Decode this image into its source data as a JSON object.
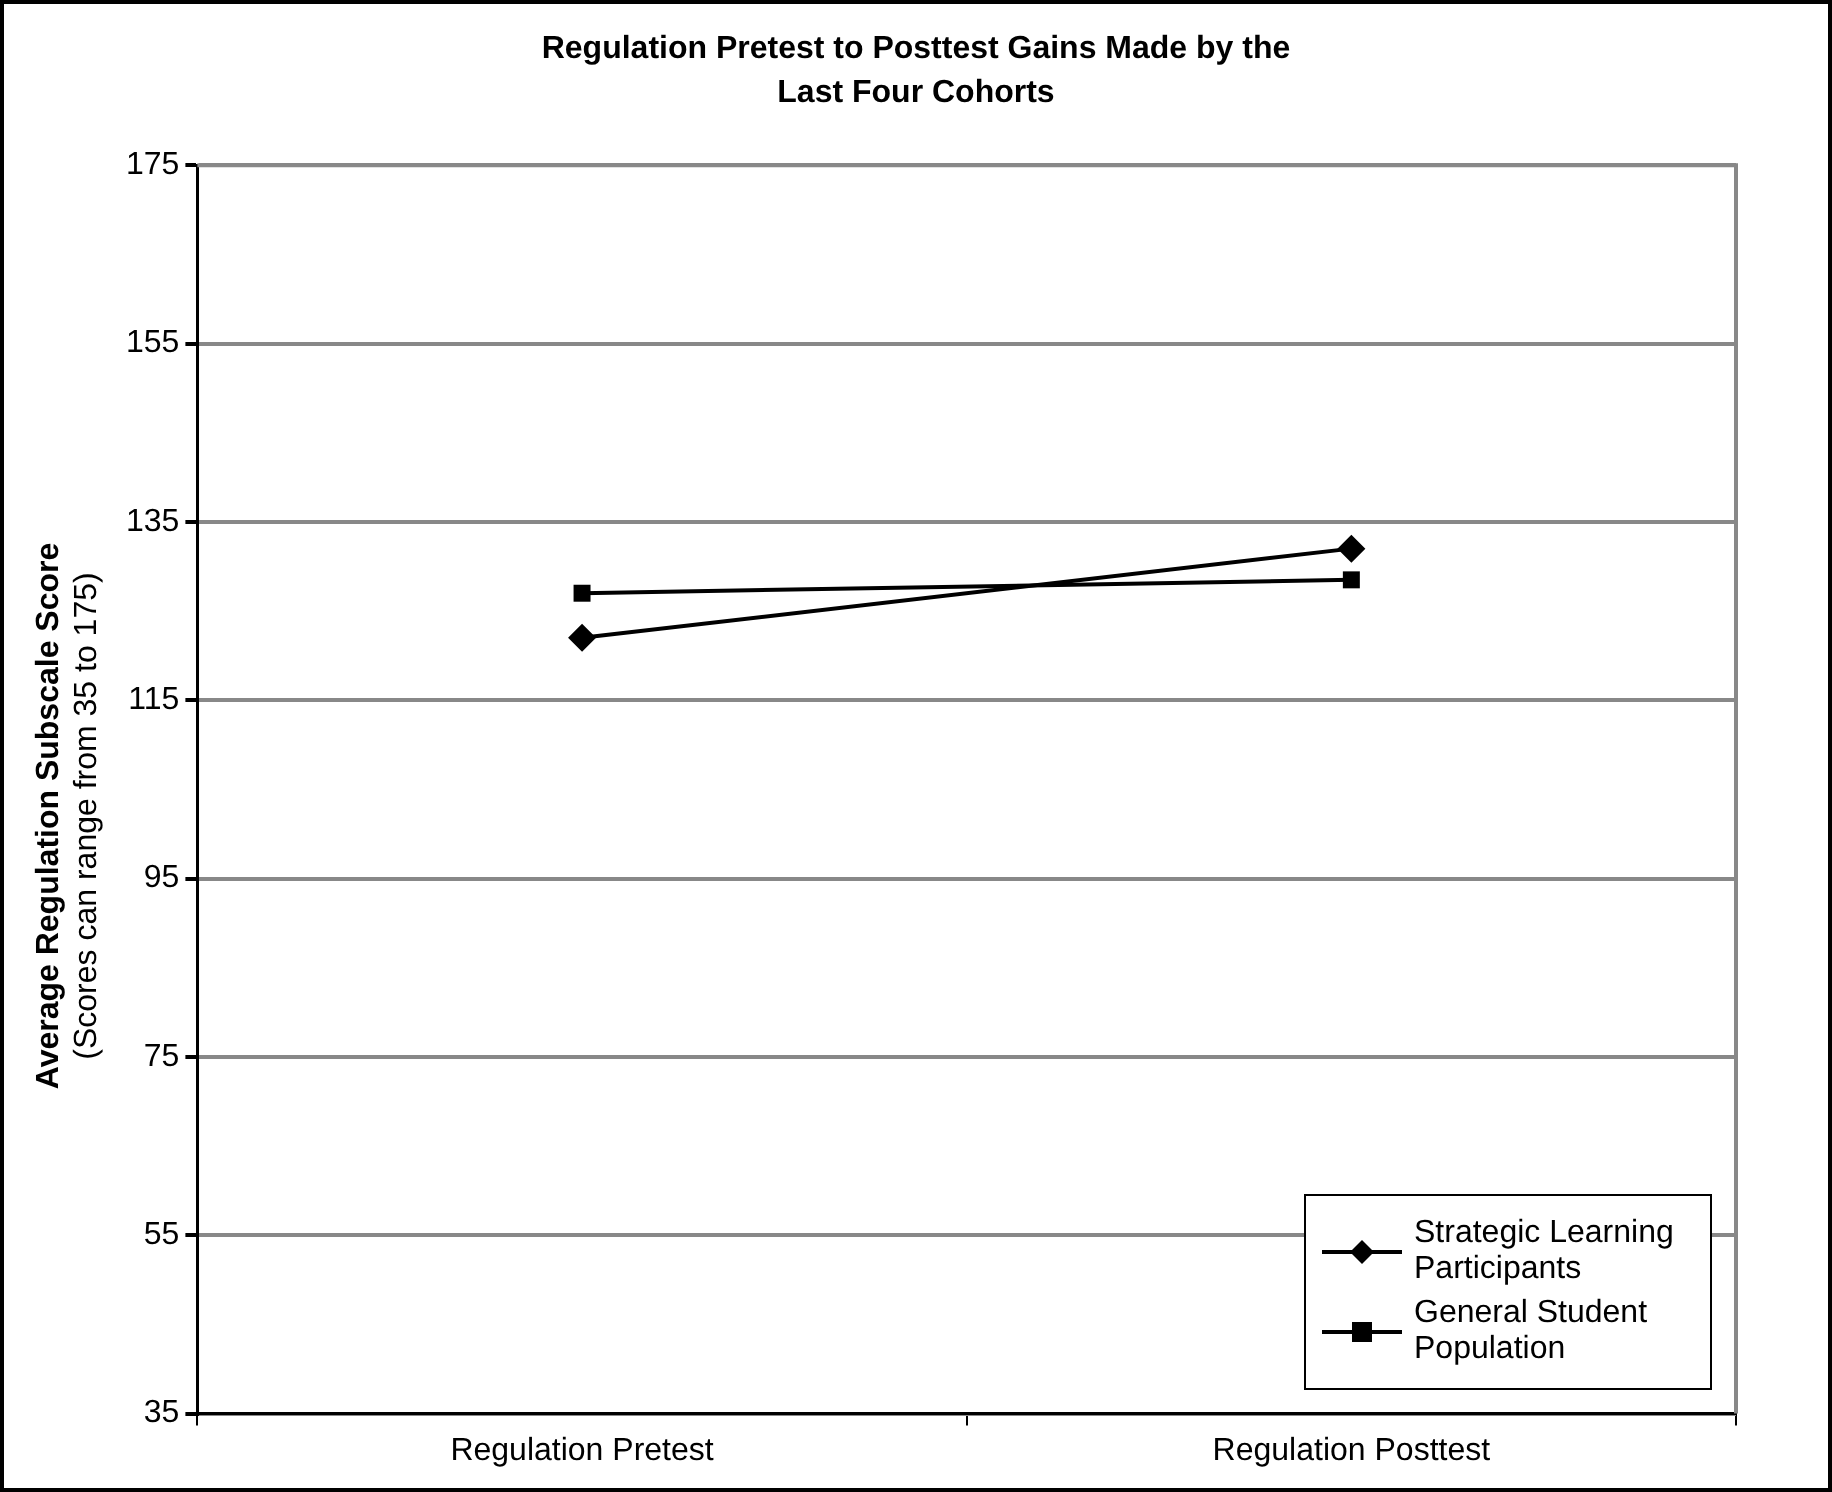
{
  "chart_data": {
    "type": "line",
    "title": "Regulation Pretest to Posttest Gains Made by the\nLast Four Cohorts",
    "ylabel": "Average Regulation Subscale Score\n(Scores can range from 35 to 175)",
    "categories": [
      "Regulation Pretest",
      "Regulation Posttest"
    ],
    "series": [
      {
        "name": "Strategic Learning Participants",
        "color": "#000000",
        "marker": "diamond",
        "values": [
          122,
          132
        ]
      },
      {
        "name": "General Student Population",
        "color": "#000000",
        "marker": "square",
        "values": [
          127,
          128.5
        ]
      }
    ],
    "ylim": [
      35,
      175
    ],
    "yticks": [
      35,
      55,
      75,
      95,
      115,
      135,
      155,
      175
    ],
    "grid": "y",
    "legend": "bottom right",
    "line_style": "solid"
  }
}
